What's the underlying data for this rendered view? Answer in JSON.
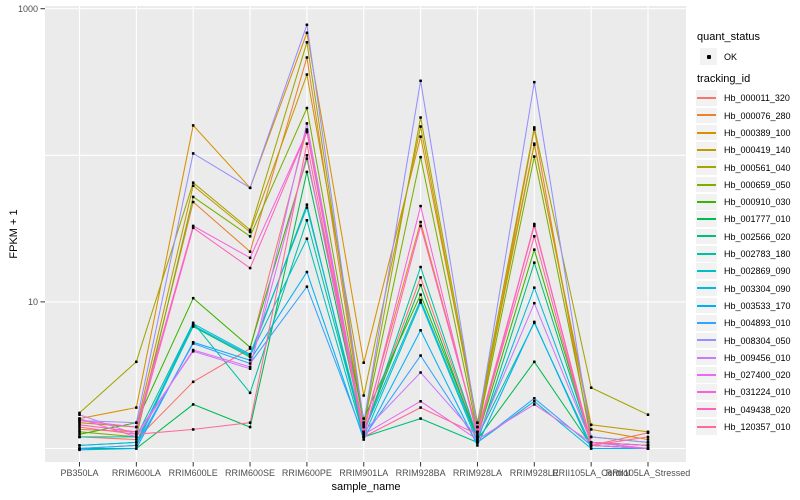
{
  "figure": {
    "panel_background": "#EBEBEB",
    "gridline_color": "#FFFFFF",
    "tick_mark_color": "#333333",
    "tick_label_color": "#4D4D4D",
    "point_color": "#000000"
  },
  "legend": {
    "key_background": "#F2F2F2",
    "quant_status": {
      "title": "quant_status",
      "items": [
        {
          "label": "OK",
          "symbol": "point",
          "color": "#000000"
        }
      ]
    },
    "tracking": {
      "title": "tracking_id"
    }
  },
  "chart_data": {
    "type": "line",
    "title": "",
    "xlabel": "sample_name",
    "ylabel": "FPKM + 1",
    "yscale": "log10",
    "ylim": [
      0.83,
      1050
    ],
    "grid": true,
    "legend_position": "right",
    "yticks": [
      {
        "value": 1000,
        "label": "1000"
      },
      {
        "value": 10,
        "label": "10"
      }
    ],
    "ygridlines": [
      1,
      10,
      100,
      1000
    ],
    "categories": [
      "PB350LA",
      "RRIM600LA",
      "RRIM600LE",
      "RRIM600SE",
      "RRIM600PE",
      "RRIM901LA",
      "RRIM928BA",
      "RRIM928LA",
      "RRIM928LE",
      "RRII105LA_Control",
      "RRII105LA_Stressed"
    ],
    "series": [
      {
        "tracking_id": "Hb_000011_320",
        "color": "#F8766D",
        "values": [
          1.2,
          1.15,
          2.85,
          4.8,
          150,
          1.3,
          14.7,
          1.2,
          34,
          1.05,
          1.28
        ]
      },
      {
        "tracking_id": "Hb_000076_280",
        "color": "#EA8331",
        "values": [
          1.35,
          1.3,
          48,
          22,
          465,
          1.4,
          35,
          1.3,
          150,
          1.1,
          1.05
        ]
      },
      {
        "tracking_id": "Hb_000389_100",
        "color": "#D89000",
        "values": [
          1.6,
          1.9,
          160,
          60,
          685,
          3.85,
          134,
          1.5,
          120,
          1.35,
          1.15
        ]
      },
      {
        "tracking_id": "Hb_000419_140",
        "color": "#C09B00",
        "values": [
          1.5,
          1.4,
          62,
          30,
          355,
          2.3,
          157,
          1.4,
          118,
          1.45,
          1.3
        ]
      },
      {
        "tracking_id": "Hb_000561_040",
        "color": "#A3A500",
        "values": [
          1.75,
          3.9,
          65,
          31,
          590,
          1.5,
          181,
          1.5,
          155,
          2.6,
          1.7
        ]
      },
      {
        "tracking_id": "Hb_000659_050",
        "color": "#7CAE00",
        "values": [
          1.3,
          1.2,
          52,
          28,
          210,
          1.45,
          97,
          1.3,
          98,
          1.2,
          1.1
        ]
      },
      {
        "tracking_id": "Hb_000910_030",
        "color": "#39B600",
        "values": [
          1.25,
          1.5,
          10.6,
          4.9,
          95,
          1.6,
          11.2,
          1.2,
          22.7,
          1.1,
          1.05
        ]
      },
      {
        "tracking_id": "Hb_001777_010",
        "color": "#00BB4E",
        "values": [
          1.0,
          1.0,
          2.0,
          1.4,
          77,
          1.3,
          13,
          1.15,
          3.9,
          1.05,
          1.0
        ]
      },
      {
        "tracking_id": "Hb_002566_020",
        "color": "#00BF7D",
        "values": [
          1.05,
          1.1,
          6.8,
          4.2,
          46,
          1.2,
          1.6,
          1.1,
          18.5,
          1.1,
          1.05
        ]
      },
      {
        "tracking_id": "Hb_002783_180",
        "color": "#00C1A3",
        "values": [
          1.2,
          1.2,
          7.2,
          2.4,
          36,
          1.25,
          17.3,
          1.2,
          7.2,
          1.05,
          1.0
        ]
      },
      {
        "tracking_id": "Hb_002869_090",
        "color": "#00BFC4",
        "values": [
          1.0,
          1.05,
          6.9,
          4.3,
          27,
          1.2,
          9.9,
          1.1,
          2.1,
          1.0,
          1.0
        ]
      },
      {
        "tracking_id": "Hb_003304_090",
        "color": "#00BAE0",
        "values": [
          1.05,
          1.1,
          7.1,
          4.4,
          44,
          1.3,
          10.3,
          1.15,
          12.5,
          1.1,
          1.0
        ]
      },
      {
        "tracking_id": "Hb_003533_170",
        "color": "#00B0F6",
        "values": [
          0.98,
          1.0,
          5.3,
          4.0,
          16,
          1.15,
          6.4,
          1.05,
          7.3,
          1.0,
          1.0
        ]
      },
      {
        "tracking_id": "Hb_004893_010",
        "color": "#35A2FF",
        "values": [
          1.0,
          1.05,
          5.2,
          3.8,
          12.7,
          1.2,
          4.3,
          1.1,
          2.2,
          1.05,
          1.0
        ]
      },
      {
        "tracking_id": "Hb_008304_050",
        "color": "#9590FF",
        "values": [
          1.55,
          1.5,
          103,
          60,
          777,
          1.5,
          322,
          1.4,
          315,
          1.2,
          1.1
        ]
      },
      {
        "tracking_id": "Hb_009456_010",
        "color": "#C77CFF",
        "values": [
          1.7,
          1.25,
          4.6,
          3.5,
          165,
          1.3,
          3.3,
          1.2,
          9.8,
          1.1,
          1.05
        ]
      },
      {
        "tracking_id": "Hb_027400_020",
        "color": "#E76BF3",
        "values": [
          1.6,
          1.2,
          4.7,
          3.6,
          100,
          1.25,
          2.1,
          1.15,
          2.0,
          1.1,
          1.0
        ]
      },
      {
        "tracking_id": "Hb_031224_010",
        "color": "#FA62DB",
        "values": [
          1.55,
          1.4,
          33,
          20,
          145,
          1.3,
          45,
          1.2,
          33.5,
          1.05,
          1.0
        ]
      },
      {
        "tracking_id": "Hb_049438_020",
        "color": "#FF62BC",
        "values": [
          1.45,
          1.3,
          32,
          17,
          144,
          1.2,
          33,
          1.3,
          33,
          1.1,
          1.05
        ]
      },
      {
        "tracking_id": "Hb_120357_010",
        "color": "#FF6A98",
        "values": [
          1.4,
          1.25,
          1.35,
          1.5,
          120,
          1.2,
          1.9,
          1.25,
          28,
          1.05,
          1.2
        ]
      }
    ]
  }
}
